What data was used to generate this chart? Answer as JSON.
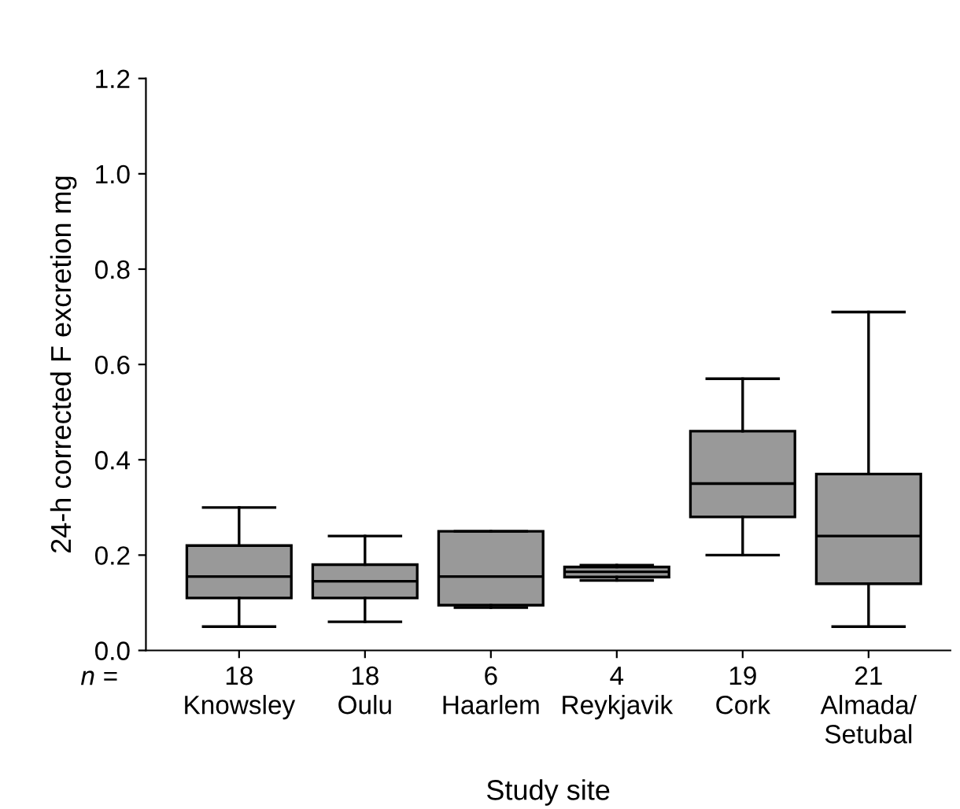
{
  "chart_data": {
    "type": "box",
    "xlabel": "Study site",
    "ylabel": "24-h corrected F excretion mg",
    "categories": [
      "18\nKnowsley",
      "18\nOulu",
      "6\nHaarlem",
      "4\nReykjavik",
      "19\nCork",
      "21\nAlmada/\nSetubal"
    ],
    "boxes": [
      {
        "low": 0.05,
        "q1": 0.11,
        "median": 0.155,
        "q3": 0.22,
        "high": 0.3
      },
      {
        "low": 0.06,
        "q1": 0.11,
        "median": 0.145,
        "q3": 0.18,
        "high": 0.24
      },
      {
        "low": 0.09,
        "q1": 0.095,
        "median": 0.155,
        "q3": 0.25,
        "high": 0.25
      },
      {
        "low": 0.147,
        "q1": 0.154,
        "median": 0.165,
        "q3": 0.175,
        "high": 0.179
      },
      {
        "low": 0.2,
        "q1": 0.28,
        "median": 0.35,
        "q3": 0.46,
        "high": 0.57
      },
      {
        "low": 0.05,
        "q1": 0.14,
        "median": 0.24,
        "q3": 0.37,
        "high": 0.71
      }
    ],
    "color": "#999999",
    "ylim": [
      0.0,
      1.2
    ],
    "yticks": [
      {
        "value": 0.0,
        "label": "0.0"
      },
      {
        "value": 0.2,
        "label": "0.2"
      },
      {
        "value": 0.4,
        "label": "0.4"
      },
      {
        "value": 0.6,
        "label": "0.6"
      },
      {
        "value": 0.8,
        "label": "0.8"
      },
      {
        "value": 1.0,
        "label": "1.0"
      },
      {
        "value": 1.2,
        "label": "1.2"
      }
    ],
    "grid": false,
    "legend": false,
    "annotations": [
      "n ="
    ]
  }
}
